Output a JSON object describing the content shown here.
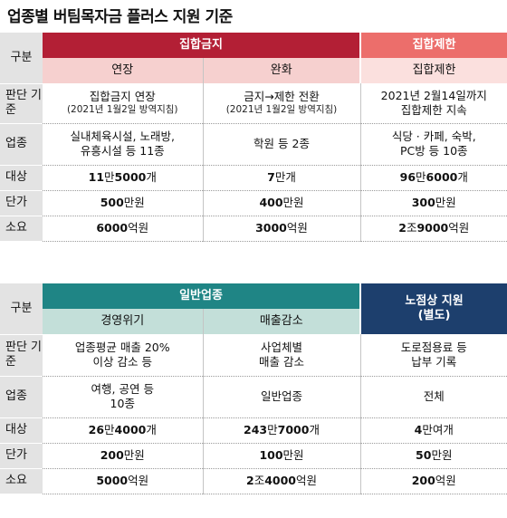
{
  "title": "업종별 버팀목자금 플러스 지원 기준",
  "table1": {
    "header_col": "구분",
    "group_a": "집합금지",
    "group_b": "집합제한",
    "sub_a1": "연장",
    "sub_a2": "완화",
    "sub_b": "집합제한",
    "rows": {
      "criteria": {
        "label": "판단 기준",
        "c1_main": "집합금지 연장",
        "c1_note": "(2021년 1월2일 방역지침)",
        "c2_main": "금지→제한 전환",
        "c2_note": "(2021년 1월2일 방역지침)",
        "c3_line1": "2021년 2월14일까지",
        "c3_line2": "집합제한 지속"
      },
      "industry": {
        "label": "업종",
        "c1_line1": "실내체육시설, 노래방,",
        "c1_line2": "유흥시설 등 11종",
        "c2": "학원 등 2종",
        "c3_line1": "식당 · 카페, 숙박,",
        "c3_line2": "PC방 등 10종"
      },
      "target": {
        "label": "대상",
        "c1": "11만5000개",
        "c2": "7만개",
        "c3": "96만6000개"
      },
      "price": {
        "label": "단가",
        "c1": "500만원",
        "c2": "400만원",
        "c3": "300만원"
      },
      "required": {
        "label": "소요",
        "c1": "6000억원",
        "c2": "3000억원",
        "c3": "2조9000억원"
      }
    }
  },
  "table2": {
    "header_col": "구분",
    "group_a": "일반업종",
    "group_b_line1": "노점상 지원",
    "group_b_line2": "(별도)",
    "sub_a1": "경영위기",
    "sub_a2": "매출감소",
    "rows": {
      "criteria": {
        "label": "판단 기준",
        "c1_line1": "업종평균 매출 20%",
        "c1_line2": "이상 감소 등",
        "c2_line1": "사업체별",
        "c2_line2": "매출 감소",
        "c3_line1": "도로점용료 등",
        "c3_line2": "납부 기록"
      },
      "industry": {
        "label": "업종",
        "c1_line1": "여행, 공연 등",
        "c1_line2": "10종",
        "c2": "일반업종",
        "c3": "전체"
      },
      "target": {
        "label": "대상",
        "c1": "26만4000개",
        "c2": "243만7000개",
        "c3": "4만여개"
      },
      "price": {
        "label": "단가",
        "c1": "200만원",
        "c2": "100만원",
        "c3": "50만원"
      },
      "required": {
        "label": "소요",
        "c1": "5000억원",
        "c2": "2조4000억원",
        "c3": "200억원"
      }
    }
  },
  "colors": {
    "group_a1": "#b31f35",
    "sub_a1": "#f6d0cf",
    "group_b1": "#ec6e6b",
    "sub_b1": "#fbe0de",
    "group_a2": "#1f8585",
    "sub_a2": "#c3dfd9",
    "group_b2": "#1d3f6d",
    "label_bg": "#e3e3e3"
  }
}
